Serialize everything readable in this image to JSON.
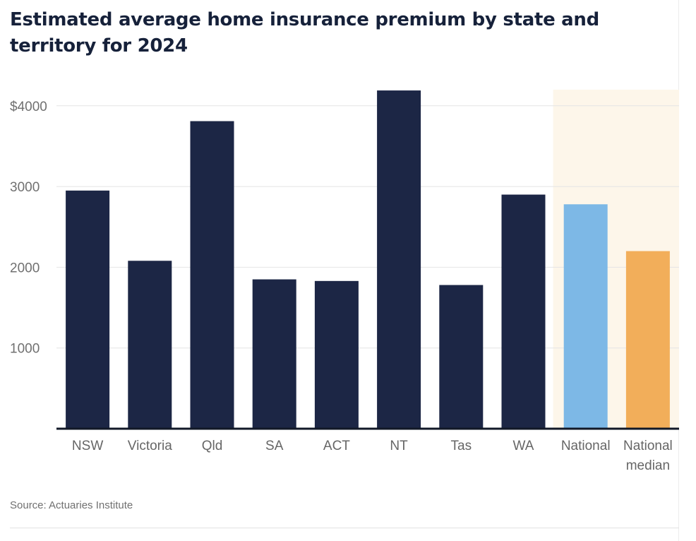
{
  "title": "Estimated average home insurance premium by state and territory for 2024",
  "source": "Source: Actuaries Institute",
  "colors": {
    "default_bar": "#1c2645",
    "national_bar": "#7db8e6",
    "median_bar": "#f2ae5a",
    "highlight_band": "#fdf6ea",
    "grid": "#e4e4e4",
    "baseline": "#111827"
  },
  "chart_data": {
    "type": "bar",
    "title": "Estimated average home insurance premium by state and territory for 2024",
    "xlabel": "",
    "ylabel": "",
    "ylim": [
      0,
      4200
    ],
    "y_ticks": [
      {
        "value": 1000,
        "label": "1000"
      },
      {
        "value": 2000,
        "label": "2000"
      },
      {
        "value": 3000,
        "label": "3000"
      },
      {
        "value": 4000,
        "label": "$4000"
      }
    ],
    "grid": true,
    "categories": [
      [
        "NSW"
      ],
      [
        "Victoria"
      ],
      [
        "Qld"
      ],
      [
        "SA"
      ],
      [
        "ACT"
      ],
      [
        "NT"
      ],
      [
        "Tas"
      ],
      [
        "WA"
      ],
      [
        "National"
      ],
      [
        "National",
        "median"
      ]
    ],
    "values": [
      2950,
      2080,
      3810,
      1850,
      1830,
      4190,
      1780,
      2900,
      2780,
      2200
    ],
    "bar_colors": [
      "default_bar",
      "default_bar",
      "default_bar",
      "default_bar",
      "default_bar",
      "default_bar",
      "default_bar",
      "default_bar",
      "national_bar",
      "median_bar"
    ],
    "highlighted_categories": [
      8,
      9
    ]
  }
}
